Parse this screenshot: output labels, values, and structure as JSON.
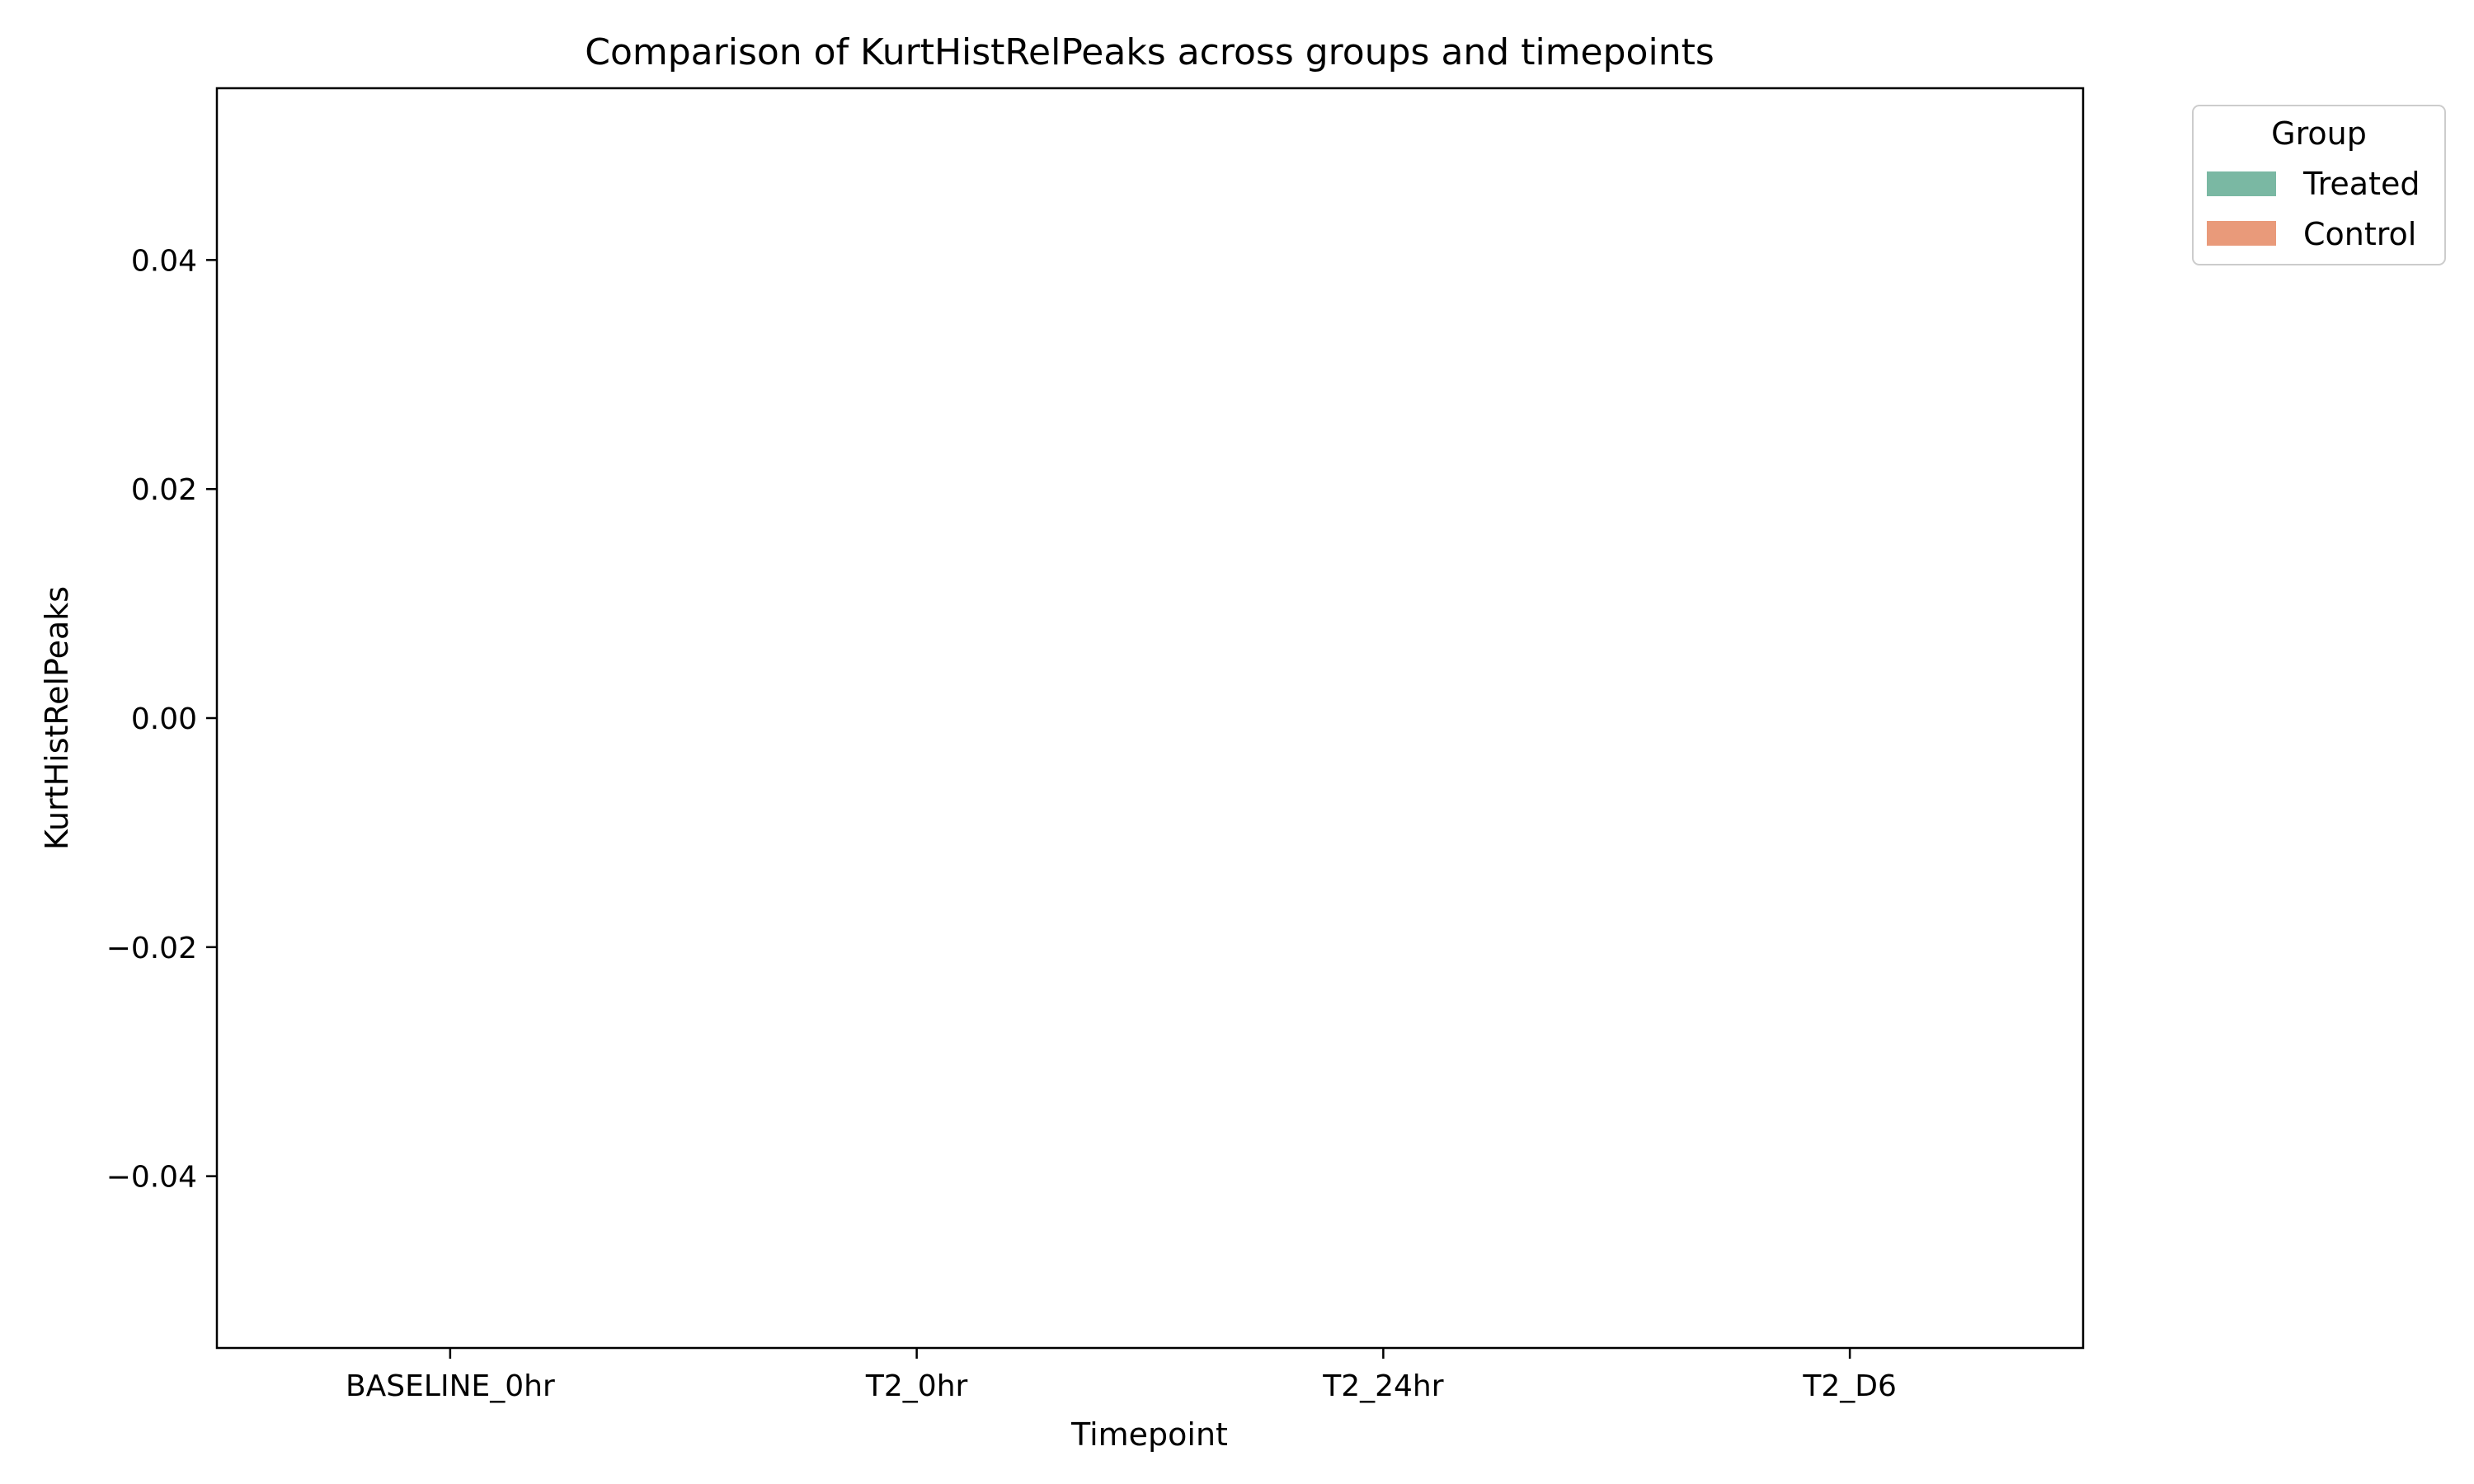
{
  "chart_data": {
    "type": "bar",
    "title": "Comparison of KurtHistRelPeaks across groups and timepoints",
    "xlabel": "Timepoint",
    "ylabel": "KurtHistRelPeaks",
    "categories": [
      "BASELINE_0hr",
      "T2_0hr",
      "T2_24hr",
      "T2_D6"
    ],
    "series": [
      {
        "name": "Treated",
        "values": [
          0,
          0,
          0,
          0
        ],
        "color": "#7ab8a3"
      },
      {
        "name": "Control",
        "values": [
          0,
          0,
          0,
          0
        ],
        "color": "#e99a7a"
      }
    ],
    "ylim": [
      -0.055,
      0.055
    ],
    "yticks": [
      -0.04,
      -0.02,
      0.0,
      0.02,
      0.04
    ],
    "ytick_labels": [
      "−0.04",
      "−0.02",
      "0.00",
      "0.02",
      "0.04"
    ],
    "grid": false,
    "legend": {
      "title": "Group",
      "placement": "outside-top-right"
    }
  }
}
